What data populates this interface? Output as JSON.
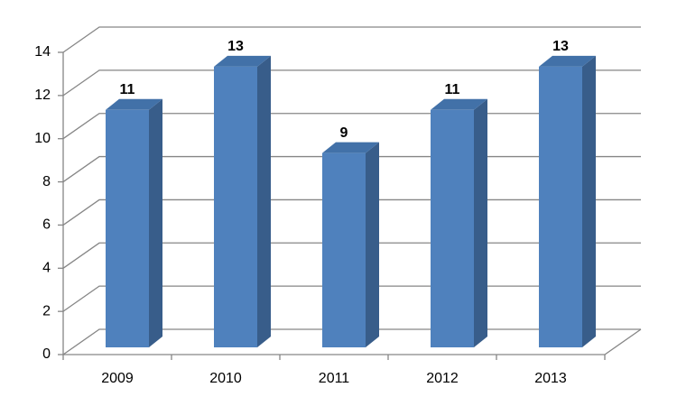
{
  "chart_data": {
    "type": "bar3d",
    "categories": [
      "2009",
      "2010",
      "2011",
      "2012",
      "2013"
    ],
    "values": [
      11,
      13,
      9,
      11,
      13
    ],
    "color": "#4f81bd",
    "ylim": [
      0,
      14
    ],
    "yticks": [
      0,
      2,
      4,
      6,
      8,
      10,
      12,
      14
    ],
    "grid": true
  }
}
